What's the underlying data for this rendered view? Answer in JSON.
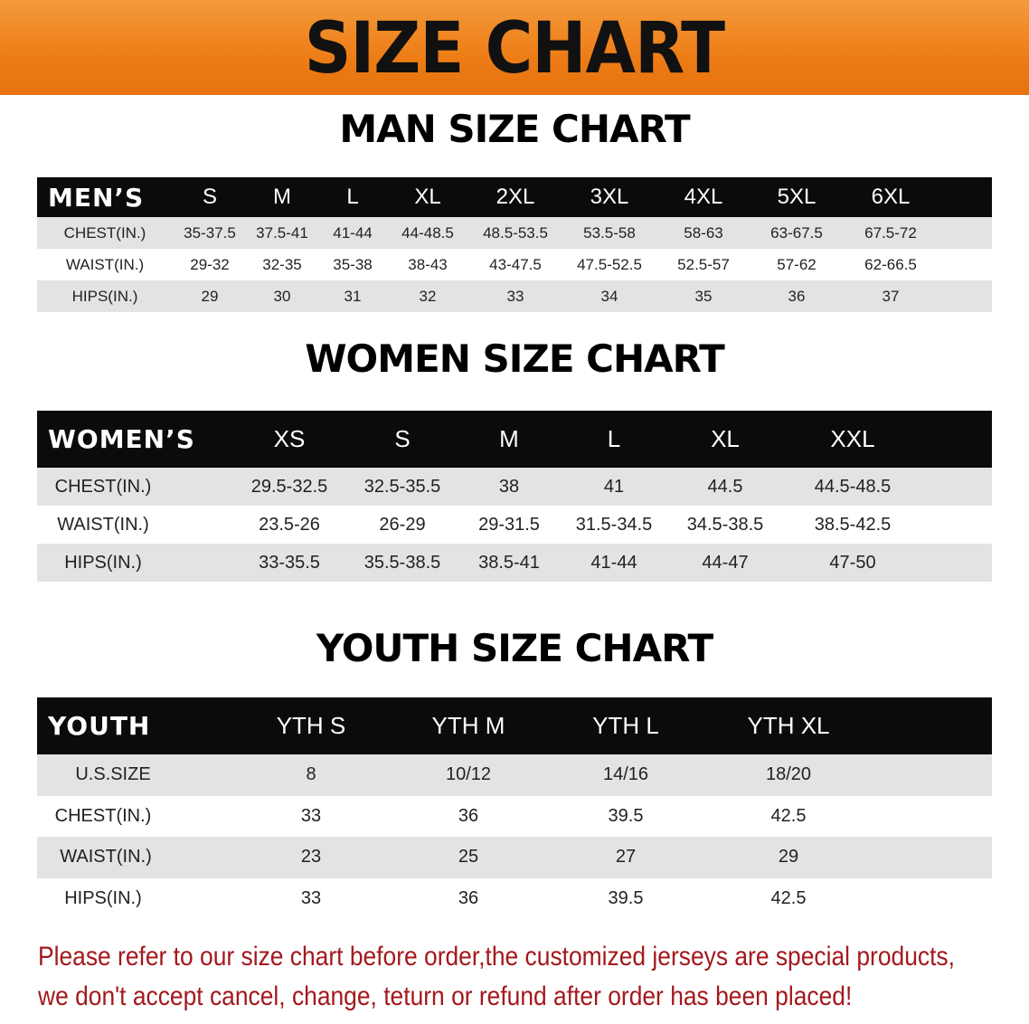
{
  "banner": {
    "title": "SIZE CHART",
    "color": "#ee7d16"
  },
  "men": {
    "title": "MAN SIZE CHART",
    "header": [
      "MEN’S",
      "S",
      "M",
      "L",
      "XL",
      "2XL",
      "3XL",
      "4XL",
      "5XL",
      "6XL"
    ],
    "rows": [
      [
        "CHEST(IN.)",
        "35-37.5",
        "37.5-41",
        "41-44",
        "44-48.5",
        "48.5-53.5",
        "53.5-58",
        "58-63",
        "63-67.5",
        "67.5-72"
      ],
      [
        "WAIST(IN.)",
        "29-32",
        "32-35",
        "35-38",
        "38-43",
        "43-47.5",
        "47.5-52.5",
        "52.5-57",
        "57-62",
        "62-66.5"
      ],
      [
        "HIPS(IN.)",
        "29",
        "30",
        "31",
        "32",
        "33",
        "34",
        "35",
        "36",
        "37"
      ]
    ]
  },
  "women": {
    "title": "WOMEN SIZE CHART",
    "header": [
      "WOMEN’S",
      "XS",
      "S",
      "M",
      "L",
      "XL",
      "XXL"
    ],
    "rows": [
      [
        "CHEST(IN.)",
        "29.5-32.5",
        "32.5-35.5",
        "38",
        "41",
        "44.5",
        "44.5-48.5"
      ],
      [
        "WAIST(IN.)",
        "23.5-26",
        "26-29",
        "29-31.5",
        "31.5-34.5",
        "34.5-38.5",
        "38.5-42.5"
      ],
      [
        "HIPS(IN.)",
        "33-35.5",
        "35.5-38.5",
        "38.5-41",
        "41-44",
        "44-47",
        "47-50"
      ]
    ]
  },
  "youth": {
    "title": "YOUTH SIZE CHART",
    "header": [
      "YOUTH",
      "YTH S",
      "YTH M",
      "YTH L",
      "YTH XL"
    ],
    "rows": [
      [
        "U.S.SIZE",
        "8",
        "10/12",
        "14/16",
        "18/20"
      ],
      [
        "CHEST(IN.)",
        "33",
        "36",
        "39.5",
        "42.5"
      ],
      [
        "WAIST(IN.)",
        "23",
        "25",
        "27",
        "29"
      ],
      [
        "HIPS(IN.)",
        "33",
        "36",
        "39.5",
        "42.5"
      ]
    ]
  },
  "note": {
    "line1": "Please refer to our size chart before order,the customized jerseys are special products,",
    "line2": "we don't accept cancel, change, teturn or refund after order has been placed!",
    "color": "#a3191d"
  }
}
